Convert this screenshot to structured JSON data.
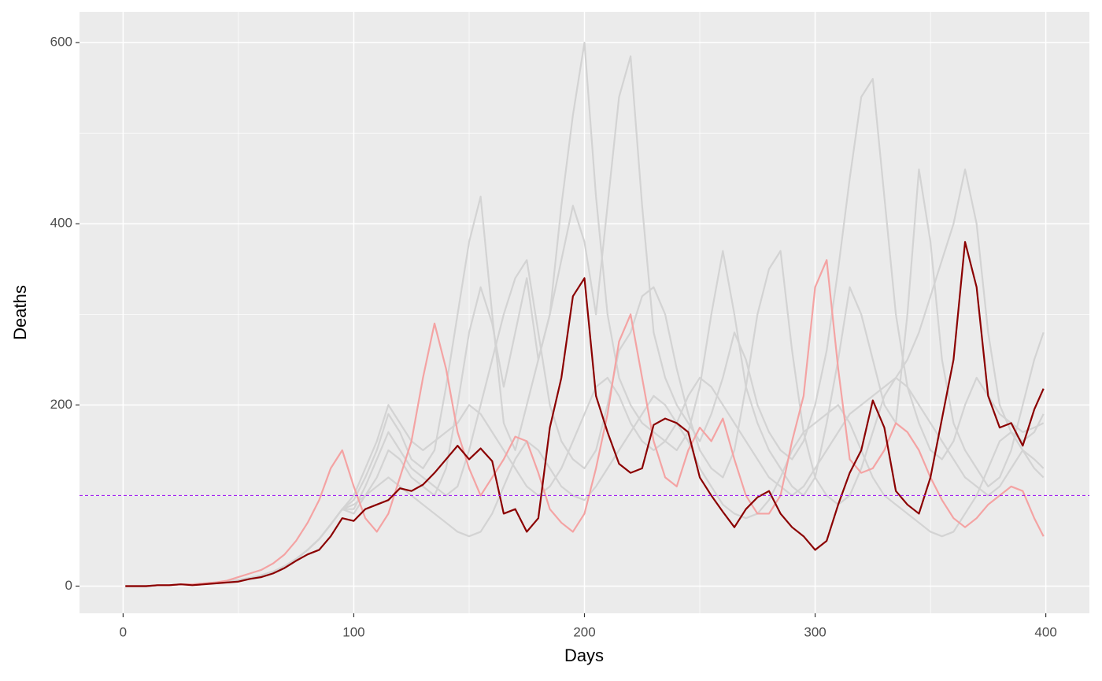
{
  "chart_data": {
    "type": "line",
    "x_label": "Days",
    "y_label": "Deaths",
    "x": [
      1,
      5,
      10,
      15,
      20,
      25,
      30,
      35,
      40,
      45,
      50,
      55,
      60,
      65,
      70,
      75,
      80,
      85,
      90,
      95,
      100,
      105,
      110,
      115,
      120,
      125,
      130,
      135,
      140,
      145,
      150,
      155,
      160,
      165,
      170,
      175,
      180,
      185,
      190,
      195,
      200,
      205,
      210,
      215,
      220,
      225,
      230,
      235,
      240,
      245,
      250,
      255,
      260,
      265,
      270,
      275,
      280,
      285,
      290,
      295,
      300,
      305,
      310,
      315,
      320,
      325,
      330,
      335,
      340,
      345,
      350,
      355,
      360,
      365,
      370,
      375,
      380,
      385,
      390,
      395,
      399
    ],
    "series": [
      {
        "color": "#d3d3d3",
        "values": [
          0,
          0,
          0,
          1,
          1,
          2,
          2,
          3,
          4,
          5,
          7,
          9,
          12,
          16,
          22,
          30,
          40,
          52,
          68,
          85,
          95,
          120,
          150,
          190,
          170,
          140,
          130,
          150,
          220,
          300,
          380,
          430,
          300,
          180,
          150,
          200,
          250,
          300,
          360,
          420,
          380,
          300,
          420,
          540,
          585,
          420,
          280,
          230,
          200,
          180,
          160,
          190,
          230,
          280,
          250,
          200,
          170,
          150,
          140,
          160,
          200,
          260,
          350,
          450,
          540,
          560,
          430,
          300,
          220,
          180,
          150,
          140,
          160,
          200,
          230,
          210,
          190,
          180,
          170,
          175,
          180
        ]
      },
      {
        "color": "#d3d3d3",
        "values": [
          0,
          0,
          0,
          1,
          1,
          2,
          2,
          3,
          4,
          5,
          7,
          9,
          12,
          16,
          22,
          30,
          40,
          52,
          68,
          85,
          80,
          100,
          120,
          150,
          140,
          120,
          110,
          100,
          130,
          200,
          280,
          330,
          290,
          220,
          280,
          340,
          250,
          300,
          420,
          520,
          600,
          430,
          300,
          230,
          200,
          180,
          170,
          160,
          150,
          170,
          220,
          300,
          370,
          300,
          220,
          180,
          150,
          130,
          110,
          100,
          120,
          180,
          250,
          330,
          300,
          250,
          200,
          180,
          300,
          460,
          380,
          250,
          180,
          150,
          130,
          110,
          120,
          150,
          200,
          250,
          280
        ]
      },
      {
        "color": "#d3d3d3",
        "values": [
          0,
          0,
          0,
          1,
          1,
          2,
          2,
          3,
          4,
          5,
          7,
          9,
          12,
          16,
          22,
          30,
          40,
          52,
          68,
          85,
          90,
          100,
          110,
          120,
          110,
          100,
          90,
          80,
          70,
          60,
          55,
          60,
          80,
          110,
          140,
          160,
          150,
          130,
          110,
          100,
          95,
          110,
          130,
          150,
          170,
          190,
          210,
          200,
          180,
          160,
          130,
          110,
          90,
          80,
          75,
          80,
          95,
          120,
          150,
          170,
          180,
          190,
          200,
          180,
          150,
          120,
          100,
          90,
          80,
          70,
          60,
          55,
          60,
          80,
          100,
          130,
          160,
          170,
          150,
          130,
          120
        ]
      },
      {
        "color": "#d3d3d3",
        "values": [
          0,
          0,
          0,
          1,
          1,
          2,
          2,
          3,
          4,
          5,
          7,
          9,
          12,
          16,
          22,
          30,
          40,
          52,
          68,
          85,
          85,
          110,
          140,
          170,
          150,
          130,
          120,
          110,
          100,
          110,
          150,
          200,
          250,
          300,
          340,
          360,
          280,
          200,
          160,
          140,
          130,
          150,
          200,
          260,
          280,
          320,
          330,
          300,
          240,
          190,
          150,
          130,
          120,
          150,
          220,
          300,
          350,
          370,
          260,
          170,
          120,
          100,
          90,
          100,
          130,
          170,
          210,
          230,
          250,
          280,
          320,
          360,
          400,
          460,
          400,
          280,
          200,
          170,
          160,
          170,
          190
        ]
      },
      {
        "color": "#d3d3d3",
        "values": [
          0,
          0,
          0,
          1,
          1,
          2,
          2,
          3,
          4,
          5,
          7,
          9,
          12,
          16,
          22,
          30,
          40,
          52,
          68,
          85,
          100,
          130,
          160,
          200,
          180,
          160,
          150,
          160,
          170,
          180,
          200,
          190,
          170,
          150,
          130,
          110,
          100,
          110,
          130,
          160,
          190,
          220,
          230,
          210,
          180,
          160,
          150,
          160,
          180,
          210,
          230,
          220,
          200,
          180,
          160,
          140,
          120,
          110,
          100,
          110,
          130,
          150,
          170,
          190,
          200,
          210,
          220,
          230,
          220,
          200,
          180,
          160,
          140,
          120,
          110,
          100,
          110,
          130,
          150,
          140,
          130
        ]
      },
      {
        "color": "#f4a3a3",
        "values": [
          0,
          0,
          0,
          1,
          1,
          2,
          2,
          3,
          4,
          6,
          10,
          14,
          18,
          25,
          35,
          50,
          70,
          95,
          130,
          150,
          110,
          75,
          60,
          80,
          120,
          160,
          230,
          290,
          240,
          170,
          130,
          100,
          120,
          140,
          165,
          160,
          125,
          85,
          70,
          60,
          80,
          130,
          190,
          270,
          300,
          230,
          160,
          120,
          110,
          150,
          175,
          160,
          185,
          140,
          100,
          80,
          80,
          100,
          160,
          210,
          330,
          360,
          240,
          140,
          125,
          130,
          150,
          180,
          170,
          150,
          120,
          95,
          75,
          65,
          75,
          90,
          100,
          110,
          105,
          75,
          55
        ]
      },
      {
        "color": "#8b0000",
        "values": [
          0,
          0,
          0,
          1,
          1,
          2,
          1,
          2,
          3,
          4,
          5,
          8,
          10,
          14,
          20,
          28,
          35,
          40,
          55,
          75,
          72,
          85,
          90,
          95,
          108,
          105,
          112,
          125,
          140,
          155,
          140,
          152,
          138,
          80,
          85,
          60,
          75,
          175,
          230,
          320,
          340,
          210,
          170,
          135,
          125,
          130,
          178,
          185,
          180,
          170,
          120,
          100,
          82,
          65,
          85,
          98,
          105,
          80,
          65,
          55,
          40,
          50,
          90,
          125,
          150,
          205,
          175,
          105,
          90,
          80,
          120,
          185,
          250,
          380,
          330,
          210,
          175,
          180,
          155,
          195,
          218
        ]
      }
    ],
    "reference_line": {
      "y": 100,
      "color": "#a020f0",
      "dashed": true
    },
    "xlim": [
      -18.9,
      418.9
    ],
    "ylim": [
      -30,
      634
    ],
    "xticks": [
      0,
      100,
      200,
      300,
      400
    ],
    "yticks": [
      0,
      200,
      400,
      600
    ],
    "x_minor_grid": [
      50,
      150,
      250,
      350
    ],
    "y_minor_grid": [
      100,
      300,
      500
    ],
    "grid": true,
    "panel_color": "#ebebeb"
  }
}
